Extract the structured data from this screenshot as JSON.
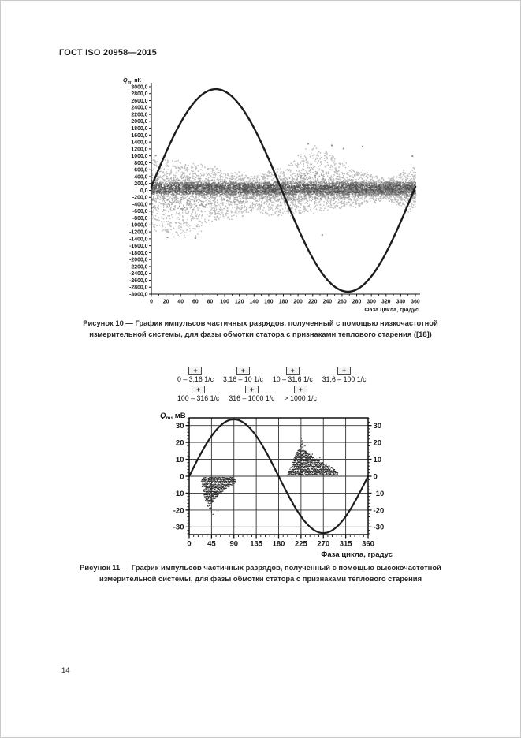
{
  "page": {
    "header": "ГОСТ ISO 20958—2015",
    "page_number": "14"
  },
  "figure10": {
    "caption_line1": "Рисунок 10 — График импульсов частичных разрядов, полученный с помощью низкочастотной",
    "caption_line2": "измерительной системы, для фазы обмотки статора с признаками теплового старения ([18])"
  },
  "figure11": {
    "caption_line1": "Рисунок 11 — График импульсов частичных разрядов, полученный с помощью высокочастотной",
    "caption_line2": "измерительной системы, для фазы обмотки статора с признаками теплового старения"
  },
  "chart_data": [
    {
      "type": "scatter",
      "figure": "Рисунок 10",
      "title": "",
      "ylabel": "Qm, пК",
      "ylabel_parts": {
        "base": "Q",
        "sub": "m",
        "rest": ", пК"
      },
      "xlabel": "Фаза цикла, градус",
      "xlim": [
        0,
        360
      ],
      "ylim": [
        -3000,
        3000
      ],
      "xticks": [
        0,
        20,
        40,
        60,
        80,
        100,
        120,
        140,
        160,
        180,
        200,
        220,
        240,
        260,
        280,
        300,
        320,
        340,
        360
      ],
      "ytick_min": -3000,
      "ytick_max": 3000,
      "ytick_step": 200,
      "ytick_decimal_format": "comma-one-decimal",
      "grid": false,
      "sine": {
        "amplitude": 2930,
        "phase_deg": 2,
        "offset": 0
      },
      "scatter_envelope": {
        "x": [
          0,
          20,
          40,
          60,
          80,
          100,
          120,
          140,
          160,
          180,
          200,
          210,
          220,
          240,
          260,
          280,
          300,
          320,
          340,
          360
        ],
        "upper": [
          950,
          880,
          820,
          800,
          680,
          560,
          500,
          430,
          560,
          680,
          950,
          1150,
          1270,
          1120,
          820,
          620,
          460,
          320,
          520,
          660
        ],
        "lower": [
          -1150,
          -1280,
          -1320,
          -1220,
          -950,
          -820,
          -760,
          -580,
          -680,
          -720,
          -660,
          -640,
          -620,
          -560,
          -500,
          -450,
          -350,
          -260,
          -500,
          -660
        ]
      },
      "core_band": {
        "lower": -130,
        "upper": 240
      },
      "dark_band": {
        "lower": 10,
        "upper": 160
      },
      "singles": [
        [
          214,
          1350
        ],
        [
          233,
          -1290
        ],
        [
          246,
          1300
        ],
        [
          262,
          1210
        ],
        [
          288,
          1270
        ],
        [
          6,
          1010
        ],
        [
          356,
          990
        ],
        [
          60,
          -1380
        ],
        [
          22,
          -1360
        ]
      ],
      "render": {
        "cloud_points": 5200,
        "mid_points": 1700,
        "core_points": 2300,
        "dark_points": 700,
        "dark_neg_points": 260,
        "seed": 20958
      },
      "colors": {
        "curve": "#1c1c1c",
        "cloud": "#a6a6a6",
        "mid": "#8e8e8e",
        "core": "#6e6e6e",
        "dark": "#4d4d4d"
      }
    },
    {
      "type": "scatter",
      "figure": "Рисунок 11",
      "title": "",
      "ylabel": "Qm, мВ",
      "ylabel_parts": {
        "base": "Q",
        "sub": "m",
        "rest": ", мВ"
      },
      "xlabel": "Фаза цикла, градус",
      "xlim": [
        0,
        360
      ],
      "ylim": [
        -34.5,
        34.5
      ],
      "xticks": [
        0,
        45,
        90,
        135,
        180,
        225,
        270,
        315,
        360
      ],
      "yticks": [
        30,
        20,
        10,
        0,
        -10,
        -20,
        -30
      ],
      "x_minor_step": 9,
      "y_minor_step": 2,
      "grid": true,
      "legend": {
        "icon_glyph": "+",
        "items": [
          "0 – 3,16 1/с",
          "3,16 – 10 1/с",
          "10 – 31,6 1/с",
          "31,6 – 100 1/с",
          "100 – 316 1/с",
          "316 – 1000 1/с",
          "> 1000 1/с"
        ]
      },
      "sine": {
        "amplitude": 33.6,
        "phase_deg": 0,
        "offset": 0
      },
      "clusters": [
        {
          "name": "negative-cluster",
          "rows": [
            [
              -1,
              27,
              88
            ],
            [
              -2,
              25,
              92
            ],
            [
              -3,
              24,
              93
            ],
            [
              -4,
              25,
              90
            ],
            [
              -5,
              26,
              86
            ],
            [
              -6,
              25,
              80
            ],
            [
              -7,
              27,
              76
            ],
            [
              -8,
              27,
              72
            ],
            [
              -9,
              28,
              68
            ],
            [
              -10,
              28,
              62
            ],
            [
              -11,
              29,
              58
            ],
            [
              -12,
              30,
              56
            ],
            [
              -13,
              31,
              52
            ],
            [
              -14,
              32,
              50
            ],
            [
              -15,
              34,
              47
            ],
            [
              -16,
              35,
              44
            ],
            [
              -17.5,
              36,
              42
            ],
            [
              -19,
              40,
              43
            ]
          ],
          "singles": [
            [
              44,
              -21
            ],
            [
              47,
              -22.5
            ],
            [
              57,
              -20.5
            ]
          ]
        },
        {
          "name": "positive-cluster",
          "rows": [
            [
              1,
              196,
              298
            ],
            [
              2,
              198,
              300
            ],
            [
              3,
              200,
              296
            ],
            [
              4,
              202,
              292
            ],
            [
              5,
              204,
              288
            ],
            [
              6,
              206,
              282
            ],
            [
              7,
              207,
              276
            ],
            [
              8,
              208,
              268
            ],
            [
              9,
              209,
              262
            ],
            [
              10,
              210,
              256
            ],
            [
              11,
              211,
              250
            ],
            [
              12,
              213,
              246
            ],
            [
              13,
              214,
              242
            ],
            [
              14,
              216,
              238
            ],
            [
              15,
              218,
              234
            ],
            [
              16,
              220,
              231
            ],
            [
              17.5,
              222,
              229
            ],
            [
              19,
              224,
              227
            ]
          ],
          "singles": [
            [
              226,
              21
            ],
            [
              225,
              22.5
            ],
            [
              232,
              18
            ],
            [
              247,
              13
            ],
            [
              262,
              11
            ],
            [
              285,
              2.5
            ]
          ]
        }
      ],
      "render": {
        "seed": 1120,
        "row_step_deg": 1.3,
        "dot_probability": 0.88
      },
      "colors": {
        "curve": "#1c1c1c",
        "dots": "#2e2e2e",
        "grid": "#333333"
      }
    }
  ]
}
